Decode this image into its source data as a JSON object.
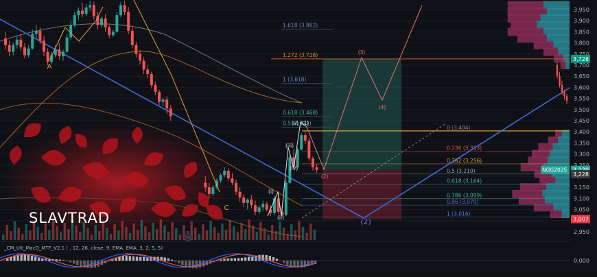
{
  "symbol_label": "NGG2025",
  "watermark": "SLAVTRAD",
  "indicator_label": "_CM_Ult_MacD_MTF_V2.1 ( , 12, 26, close, 9, EMA, EMA, 3, 2, 5, 5)",
  "tv_logo_text": "TV",
  "colors": {
    "bg": "#101116",
    "up": "#26a69a",
    "down": "#ef5350",
    "fib_line": "#f57c00",
    "trend": "#3d6bd9",
    "projection": "#e57373",
    "target_zone": "#1f5b52",
    "stop_zone": "#6e1f2e",
    "price_tag_green": "#089981",
    "price_tag_red": "#f23645",
    "price_tag_teal": "#22a596"
  },
  "chart_data": {
    "type": "candlestick",
    "price_axis": {
      "ylim": [
        2920,
        4000
      ],
      "ticks": [
        "2,950",
        "3,000",
        "3,050",
        "3,100",
        "3,150",
        "3,200",
        "3,250",
        "3,300",
        "3,350",
        "3,400",
        "3,450",
        "3,500",
        "3,550",
        "3,600",
        "3,650",
        "3,700",
        "3,750",
        "3,800",
        "3,850",
        "3,900",
        "3,950"
      ]
    },
    "price_tags": [
      {
        "label": "3,728",
        "value": 3728,
        "color": "#089981"
      },
      {
        "label": "3,229",
        "value": 3229,
        "color": "#22a596"
      },
      {
        "label": "3,228",
        "value": 3228,
        "color": "#3a3a3a"
      },
      {
        "label": "3,007",
        "value": 3007,
        "color": "#f23645"
      }
    ],
    "fib_extension": [
      {
        "label": "1.618 (3,862)",
        "value": 3862
      },
      {
        "label": "1.272 (3,728)",
        "value": 3728
      },
      {
        "label": "1 (3,618)",
        "value": 3618
      },
      {
        "label": "0.618 (3,468)",
        "value": 3468
      },
      {
        "label": "0.5 (3,421)",
        "value": 3421
      }
    ],
    "fib_retracement": [
      {
        "label": "0 (3,404)",
        "value": 3404
      },
      {
        "label": "0.236 (3,313)",
        "value": 3313
      },
      {
        "label": "0.382 (3,256)",
        "value": 3256
      },
      {
        "label": "0.5 (3,210)",
        "value": 3210
      },
      {
        "label": "0.618 (3,164)",
        "value": 3164
      },
      {
        "label": "0.786 (3,099)",
        "value": 3099
      },
      {
        "label": "0.86 (3,070)",
        "value": 3070
      },
      {
        "label": "1 (3,016)",
        "value": 3016
      }
    ],
    "wave_labels": [
      {
        "text": "A",
        "time": 11,
        "price": 3650
      },
      {
        "text": "C",
        "time": 53,
        "price": 3045
      },
      {
        "text": "(i)",
        "time": 63,
        "price": 3110
      },
      {
        "text": "(ii)",
        "time": 65,
        "price": 3015
      },
      {
        "text": "(iii)",
        "time": 67,
        "price": 3313
      },
      {
        "text": "(iv)",
        "time": 69,
        "price": 3230
      },
      {
        "text": "(v)",
        "time": 69,
        "price": 3395
      },
      {
        "text": "(1)",
        "time": 71,
        "price": 3398
      },
      {
        "text": "(2)",
        "time": 75,
        "price": 3200
      },
      {
        "text": "(3)",
        "time": 84,
        "price": 3740
      },
      {
        "text": "(4)",
        "time": 89,
        "price": 3495
      },
      {
        "text": "(2)",
        "time": 85,
        "price": 2990
      }
    ],
    "projection_path": [
      {
        "time": 71,
        "price": 3370
      },
      {
        "time": 75,
        "price": 3220
      },
      {
        "time": 84,
        "price": 3728
      },
      {
        "time": 89,
        "price": 3535
      },
      {
        "time": 99,
        "price": 3980
      }
    ],
    "trade_box": {
      "entry": 3229,
      "target": 3728,
      "stop": 3007,
      "time_start": 75,
      "time_end": 93
    },
    "candles": [
      {
        "o": 3820,
        "h": 3850,
        "c": 3790,
        "l": 3770
      },
      {
        "o": 3790,
        "h": 3810,
        "c": 3760,
        "l": 3740
      },
      {
        "o": 3760,
        "h": 3800,
        "c": 3790,
        "l": 3745
      },
      {
        "o": 3790,
        "h": 3830,
        "c": 3815,
        "l": 3775
      },
      {
        "o": 3815,
        "h": 3840,
        "c": 3780,
        "l": 3765
      },
      {
        "o": 3780,
        "h": 3800,
        "c": 3745,
        "l": 3730
      },
      {
        "o": 3745,
        "h": 3790,
        "c": 3775,
        "l": 3735
      },
      {
        "o": 3775,
        "h": 3860,
        "c": 3840,
        "l": 3770
      },
      {
        "o": 3840,
        "h": 3880,
        "c": 3855,
        "l": 3820
      },
      {
        "o": 3855,
        "h": 3870,
        "c": 3810,
        "l": 3795
      },
      {
        "o": 3810,
        "h": 3830,
        "c": 3760,
        "l": 3740
      },
      {
        "o": 3760,
        "h": 3775,
        "c": 3715,
        "l": 3700
      },
      {
        "o": 3715,
        "h": 3760,
        "c": 3745,
        "l": 3705
      },
      {
        "o": 3745,
        "h": 3790,
        "c": 3770,
        "l": 3735
      },
      {
        "o": 3770,
        "h": 3800,
        "c": 3740,
        "l": 3725
      },
      {
        "o": 3740,
        "h": 3770,
        "c": 3760,
        "l": 3720
      },
      {
        "o": 3760,
        "h": 3840,
        "c": 3825,
        "l": 3755
      },
      {
        "o": 3825,
        "h": 3900,
        "c": 3880,
        "l": 3815
      },
      {
        "o": 3880,
        "h": 3940,
        "c": 3925,
        "l": 3870
      },
      {
        "o": 3925,
        "h": 3960,
        "c": 3945,
        "l": 3905
      },
      {
        "o": 3945,
        "h": 3980,
        "c": 3930,
        "l": 3915
      },
      {
        "o": 3930,
        "h": 3975,
        "c": 3960,
        "l": 3920
      },
      {
        "o": 3960,
        "h": 3990,
        "c": 3970,
        "l": 3945
      },
      {
        "o": 3970,
        "h": 3985,
        "c": 3920,
        "l": 3905
      },
      {
        "o": 3920,
        "h": 3940,
        "c": 3880,
        "l": 3860
      },
      {
        "o": 3880,
        "h": 3920,
        "c": 3910,
        "l": 3870
      },
      {
        "o": 3910,
        "h": 3930,
        "c": 3870,
        "l": 3850
      },
      {
        "o": 3870,
        "h": 3880,
        "c": 3835,
        "l": 3820
      },
      {
        "o": 3835,
        "h": 3860,
        "c": 3850,
        "l": 3825
      },
      {
        "o": 3850,
        "h": 3940,
        "c": 3925,
        "l": 3845
      },
      {
        "o": 3925,
        "h": 3985,
        "c": 3970,
        "l": 3915
      },
      {
        "o": 3970,
        "h": 3990,
        "c": 3940,
        "l": 3925
      },
      {
        "o": 3940,
        "h": 3960,
        "c": 3855,
        "l": 3840
      },
      {
        "o": 3855,
        "h": 3870,
        "c": 3790,
        "l": 3775
      },
      {
        "o": 3790,
        "h": 3805,
        "c": 3750,
        "l": 3735
      },
      {
        "o": 3750,
        "h": 3770,
        "c": 3720,
        "l": 3705
      },
      {
        "o": 3720,
        "h": 3735,
        "c": 3680,
        "l": 3660
      },
      {
        "o": 3680,
        "h": 3700,
        "c": 3660,
        "l": 3640
      },
      {
        "o": 3660,
        "h": 3670,
        "c": 3610,
        "l": 3595
      },
      {
        "o": 3610,
        "h": 3625,
        "c": 3580,
        "l": 3565
      },
      {
        "o": 3580,
        "h": 3590,
        "c": 3535,
        "l": 3520
      },
      {
        "o": 3535,
        "h": 3555,
        "c": 3545,
        "l": 3515
      },
      {
        "o": 3545,
        "h": 3560,
        "c": 3505,
        "l": 3480
      },
      {
        "o": 3505,
        "h": 3520,
        "c": 3470,
        "l": 3450
      },
      {
        "o": 3170,
        "h": 3200,
        "c": 3150,
        "l": 3130
      },
      {
        "o": 3150,
        "h": 3170,
        "c": 3120,
        "l": 3100
      },
      {
        "o": 3120,
        "h": 3160,
        "c": 3150,
        "l": 3110
      },
      {
        "o": 3150,
        "h": 3190,
        "c": 3180,
        "l": 3140
      },
      {
        "o": 3180,
        "h": 3215,
        "c": 3205,
        "l": 3170
      },
      {
        "o": 3205,
        "h": 3240,
        "c": 3225,
        "l": 3195
      },
      {
        "o": 3225,
        "h": 3235,
        "c": 3190,
        "l": 3180
      },
      {
        "o": 3190,
        "h": 3215,
        "c": 3170,
        "l": 3160
      },
      {
        "o": 3170,
        "h": 3185,
        "c": 3130,
        "l": 3115
      },
      {
        "o": 3130,
        "h": 3150,
        "c": 3105,
        "l": 3085
      },
      {
        "o": 3105,
        "h": 3120,
        "c": 3080,
        "l": 3060
      },
      {
        "o": 3080,
        "h": 3100,
        "c": 3095,
        "l": 3050
      },
      {
        "o": 3095,
        "h": 3115,
        "c": 3070,
        "l": 3055
      },
      {
        "o": 3070,
        "h": 3090,
        "c": 3040,
        "l": 3025
      },
      {
        "o": 3040,
        "h": 3070,
        "c": 3060,
        "l": 3030
      },
      {
        "o": 3060,
        "h": 3090,
        "c": 3075,
        "l": 3045
      },
      {
        "o": 3075,
        "h": 3085,
        "c": 3050,
        "l": 3040
      },
      {
        "o": 3050,
        "h": 3070,
        "c": 3035,
        "l": 3020
      },
      {
        "o": 3035,
        "h": 3110,
        "c": 3100,
        "l": 3025
      },
      {
        "o": 3100,
        "h": 3120,
        "c": 3040,
        "l": 3030
      },
      {
        "o": 3040,
        "h": 3060,
        "c": 3025,
        "l": 3016
      },
      {
        "o": 3025,
        "h": 3180,
        "c": 3170,
        "l": 3020
      },
      {
        "o": 3170,
        "h": 3300,
        "c": 3285,
        "l": 3165
      },
      {
        "o": 3285,
        "h": 3320,
        "c": 3240,
        "l": 3230
      },
      {
        "o": 3240,
        "h": 3330,
        "c": 3320,
        "l": 3235
      },
      {
        "o": 3320,
        "h": 3395,
        "c": 3385,
        "l": 3315
      },
      {
        "o": 3385,
        "h": 3404,
        "c": 3360,
        "l": 3345
      },
      {
        "o": 3360,
        "h": 3375,
        "c": 3280,
        "l": 3270
      },
      {
        "o": 3280,
        "h": 3290,
        "c": 3240,
        "l": 3225
      },
      {
        "o": 3240,
        "h": 3255,
        "c": 3229,
        "l": 3215
      }
    ],
    "overlay_candles": [
      {
        "index": 36,
        "o": 3700,
        "h": 3715,
        "c": 3650,
        "l": 3640
      },
      {
        "index": 37,
        "o": 3650,
        "h": 3670,
        "c": 3610,
        "l": 3600
      },
      {
        "index": 38,
        "o": 3610,
        "h": 3630,
        "c": 3580,
        "l": 3565
      },
      {
        "index": 39,
        "o": 3580,
        "h": 3590,
        "c": 3560,
        "l": 3545
      },
      {
        "index": 40,
        "o": 3560,
        "h": 3570,
        "c": 3540,
        "l": 3525
      }
    ],
    "volume_profile": [
      {
        "price": 3970,
        "up": 40,
        "down": 55
      },
      {
        "price": 3940,
        "up": 35,
        "down": 60
      },
      {
        "price": 3910,
        "up": 45,
        "down": 50
      },
      {
        "price": 3880,
        "up": 50,
        "down": 40
      },
      {
        "price": 3850,
        "up": 40,
        "down": 55
      },
      {
        "price": 3820,
        "up": 35,
        "down": 45
      },
      {
        "price": 3790,
        "up": 25,
        "down": 30
      },
      {
        "price": 3760,
        "up": 18,
        "down": 22
      },
      {
        "price": 3730,
        "up": 10,
        "down": 14
      },
      {
        "price": 3700,
        "up": 6,
        "down": 8
      },
      {
        "price": 3390,
        "up": 12,
        "down": 10
      },
      {
        "price": 3360,
        "up": 18,
        "down": 15
      },
      {
        "price": 3330,
        "up": 26,
        "down": 22
      },
      {
        "price": 3300,
        "up": 30,
        "down": 28
      },
      {
        "price": 3270,
        "up": 34,
        "down": 30
      },
      {
        "price": 3240,
        "up": 40,
        "down": 35
      },
      {
        "price": 3210,
        "up": 28,
        "down": 26
      },
      {
        "price": 3180,
        "up": 22,
        "down": 24
      },
      {
        "price": 3150,
        "up": 36,
        "down": 40
      },
      {
        "price": 3120,
        "up": 42,
        "down": 46
      },
      {
        "price": 3090,
        "up": 38,
        "down": 40
      },
      {
        "price": 3060,
        "up": 25,
        "down": 30
      },
      {
        "price": 3030,
        "up": 12,
        "down": 18
      }
    ],
    "macd_axis": {
      "zero_label": "0,000"
    }
  }
}
